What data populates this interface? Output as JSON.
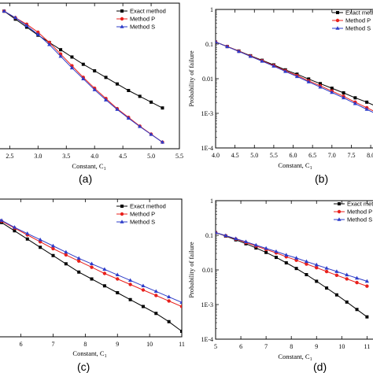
{
  "chart_data": [
    {
      "id": "a",
      "panel_label": "(a)",
      "type": "line",
      "title": "",
      "xlabel": "Constant, C",
      "xlabel_sub": "1",
      "ylabel": "",
      "xlim": [
        2.3,
        5.5
      ],
      "ylim": [
        0,
        1
      ],
      "yscale": "linear",
      "xticks": [
        "2.5",
        "3.0",
        "3.5",
        "4.0",
        "4.5",
        "5.0",
        "5.5"
      ],
      "yticks": [],
      "legend": "top-right",
      "series": [
        {
          "name": "Exact method",
          "color": "#000000",
          "marker": "square",
          "x": [
            2.4,
            2.6,
            2.8,
            3.0,
            3.2,
            3.4,
            3.6,
            3.8,
            4.0,
            4.2,
            4.4,
            4.6,
            4.8,
            5.0,
            5.2
          ],
          "y": [
            0.945,
            0.89,
            0.835,
            0.78,
            0.73,
            0.68,
            0.63,
            0.58,
            0.535,
            0.49,
            0.445,
            0.4,
            0.36,
            0.32,
            0.28
          ]
        },
        {
          "name": "Method P",
          "color": "#e8201c",
          "marker": "circle",
          "x": [
            2.4,
            2.6,
            2.8,
            3.0,
            3.2,
            3.4,
            3.6,
            3.8,
            4.0,
            4.2,
            4.4,
            4.6,
            4.8,
            5.0,
            5.2
          ],
          "y": [
            0.945,
            0.9,
            0.855,
            0.8,
            0.73,
            0.65,
            0.57,
            0.49,
            0.415,
            0.345,
            0.275,
            0.215,
            0.155,
            0.1,
            0.045
          ]
        },
        {
          "name": "Method S",
          "color": "#2d3cc9",
          "marker": "triangle",
          "x": [
            2.4,
            2.6,
            2.8,
            3.0,
            3.2,
            3.4,
            3.6,
            3.8,
            4.0,
            4.2,
            4.4,
            4.6,
            4.8,
            5.0,
            5.2
          ],
          "y": [
            0.945,
            0.9,
            0.845,
            0.785,
            0.715,
            0.635,
            0.555,
            0.48,
            0.405,
            0.335,
            0.27,
            0.21,
            0.152,
            0.098,
            0.045
          ]
        }
      ]
    },
    {
      "id": "b",
      "panel_label": "(b)",
      "type": "line",
      "title": "",
      "xlabel": "Constant, C",
      "xlabel_sub": "1",
      "ylabel": "Probability of failure",
      "xlim": [
        4.0,
        8.1
      ],
      "ylim": [
        0.0001,
        1
      ],
      "yscale": "log",
      "xticks": [
        "4.0",
        "4.5",
        "5.0",
        "5.5",
        "6.0",
        "6.5",
        "7.0",
        "7.5",
        "8.0"
      ],
      "yticks": [
        "1E-4",
        "1E-3",
        "0.01",
        "0.1",
        "1"
      ],
      "legend": "top-right",
      "series": [
        {
          "name": "Exact method",
          "color": "#000000",
          "marker": "square",
          "x": [
            4.0,
            4.3,
            4.6,
            4.9,
            5.2,
            5.5,
            5.8,
            6.1,
            6.4,
            6.7,
            7.0,
            7.3,
            7.6,
            7.9,
            8.2
          ],
          "y": [
            0.115,
            0.085,
            0.063,
            0.046,
            0.034,
            0.025,
            0.018,
            0.0135,
            0.0098,
            0.0072,
            0.0053,
            0.0039,
            0.0028,
            0.0021,
            0.0015
          ]
        },
        {
          "name": "Method P",
          "color": "#e8201c",
          "marker": "circle",
          "x": [
            4.0,
            4.3,
            4.6,
            4.9,
            5.2,
            5.5,
            5.8,
            6.1,
            6.4,
            6.7,
            7.0,
            7.3,
            7.6,
            7.9,
            8.2
          ],
          "y": [
            0.115,
            0.085,
            0.062,
            0.045,
            0.033,
            0.024,
            0.017,
            0.0123,
            0.0087,
            0.0062,
            0.0044,
            0.0031,
            0.0021,
            0.00145,
            0.001
          ]
        },
        {
          "name": "Method S",
          "color": "#2d3cc9",
          "marker": "triangle",
          "x": [
            4.0,
            4.3,
            4.6,
            4.9,
            5.2,
            5.5,
            5.8,
            6.1,
            6.4,
            6.7,
            7.0,
            7.3,
            7.6,
            7.9,
            8.2
          ],
          "y": [
            0.115,
            0.084,
            0.061,
            0.044,
            0.032,
            0.023,
            0.0162,
            0.0115,
            0.0081,
            0.0057,
            0.004,
            0.0028,
            0.0019,
            0.0013,
            0.0009
          ]
        }
      ]
    },
    {
      "id": "c",
      "panel_label": "(c)",
      "type": "line",
      "title": "",
      "xlabel": "Constant, C",
      "xlabel_sub": "1",
      "ylabel": "",
      "xlim": [
        5.3,
        11
      ],
      "ylim": [
        0,
        1
      ],
      "yscale": "linear",
      "xticks": [
        "6",
        "7",
        "8",
        "9",
        "10",
        "11"
      ],
      "yticks": [],
      "legend": "top-right",
      "series": [
        {
          "name": "Exact method",
          "color": "#000000",
          "marker": "square",
          "x": [
            5.0,
            5.4,
            5.8,
            6.2,
            6.6,
            7.0,
            7.4,
            7.8,
            8.2,
            8.6,
            9.0,
            9.4,
            9.8,
            10.2,
            10.6,
            11.0
          ],
          "y": [
            0.9,
            0.83,
            0.77,
            0.71,
            0.65,
            0.59,
            0.53,
            0.47,
            0.42,
            0.37,
            0.32,
            0.27,
            0.22,
            0.17,
            0.11,
            0.04
          ]
        },
        {
          "name": "Method P",
          "color": "#e8201c",
          "marker": "circle",
          "x": [
            5.0,
            5.4,
            5.8,
            6.2,
            6.6,
            7.0,
            7.4,
            7.8,
            8.2,
            8.6,
            9.0,
            9.4,
            9.8,
            10.2,
            10.6,
            11.0
          ],
          "y": [
            0.9,
            0.84,
            0.79,
            0.74,
            0.69,
            0.64,
            0.595,
            0.55,
            0.505,
            0.46,
            0.42,
            0.38,
            0.34,
            0.3,
            0.26,
            0.22
          ]
        },
        {
          "name": "Method S",
          "color": "#2d3cc9",
          "marker": "triangle",
          "x": [
            5.0,
            5.4,
            5.8,
            6.2,
            6.6,
            7.0,
            7.4,
            7.8,
            8.2,
            8.6,
            9.0,
            9.4,
            9.8,
            10.2,
            10.6,
            11.0
          ],
          "y": [
            0.9,
            0.845,
            0.795,
            0.75,
            0.705,
            0.66,
            0.615,
            0.57,
            0.53,
            0.49,
            0.45,
            0.41,
            0.37,
            0.33,
            0.29,
            0.25
          ]
        }
      ]
    },
    {
      "id": "d",
      "panel_label": "(d)",
      "type": "line",
      "title": "",
      "xlabel": "Constant, C",
      "xlabel_sub": "1",
      "ylabel": "Probability of failure",
      "xlim": [
        5,
        11.3
      ],
      "ylim": [
        0.0001,
        1
      ],
      "yscale": "log",
      "xticks": [
        "5",
        "6",
        "7",
        "8",
        "9",
        "10",
        "11"
      ],
      "yticks": [
        "1E-4",
        "1E-3",
        "0.01",
        "0.1",
        "1"
      ],
      "legend": "top-right",
      "series": [
        {
          "name": "Exact method",
          "color": "#000000",
          "marker": "square",
          "x": [
            5.0,
            5.4,
            5.8,
            6.2,
            6.6,
            7.0,
            7.4,
            7.8,
            8.2,
            8.6,
            9.0,
            9.4,
            9.8,
            10.2,
            10.6,
            11.0
          ],
          "y": [
            0.12,
            0.095,
            0.074,
            0.057,
            0.043,
            0.032,
            0.023,
            0.016,
            0.011,
            0.0073,
            0.0047,
            0.003,
            0.0019,
            0.00118,
            0.00072,
            0.00044
          ]
        },
        {
          "name": "Method P",
          "color": "#e8201c",
          "marker": "circle",
          "x": [
            5.0,
            5.4,
            5.8,
            6.2,
            6.6,
            7.0,
            7.4,
            7.8,
            8.2,
            8.6,
            9.0,
            9.4,
            9.8,
            10.2,
            10.6,
            11.0
          ],
          "y": [
            0.12,
            0.097,
            0.078,
            0.062,
            0.049,
            0.039,
            0.031,
            0.024,
            0.019,
            0.0148,
            0.0116,
            0.009,
            0.007,
            0.0055,
            0.0043,
            0.0034
          ]
        },
        {
          "name": "Method S",
          "color": "#2d3cc9",
          "marker": "triangle",
          "x": [
            5.0,
            5.4,
            5.8,
            6.2,
            6.6,
            7.0,
            7.4,
            7.8,
            8.2,
            8.6,
            9.0,
            9.4,
            9.8,
            10.2,
            10.6,
            11.0
          ],
          "y": [
            0.12,
            0.098,
            0.08,
            0.065,
            0.052,
            0.042,
            0.034,
            0.027,
            0.022,
            0.0175,
            0.014,
            0.0112,
            0.009,
            0.0072,
            0.0058,
            0.0047
          ]
        }
      ]
    }
  ]
}
